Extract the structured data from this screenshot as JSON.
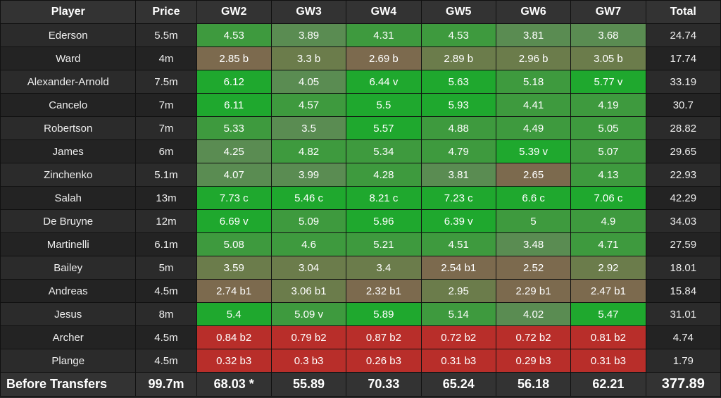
{
  "type": "table",
  "background_color": "#2a2a2a",
  "grid_color": "#111111",
  "text_color": "#ffffff",
  "header_bg": "#333333",
  "row_bg_a": "#2b2b2b",
  "row_bg_b": "#232323",
  "summary_bg": "#333333",
  "cell_colors": {
    "bright_green": "#1fa82e",
    "mid_green": "#3e9a3e",
    "dim_green": "#5a8c52",
    "olive": "#6b7c4b",
    "brown": "#7c6a4e",
    "red_brown": "#8a4d3a",
    "red": "#b82e2a"
  },
  "columns": [
    "Player",
    "Price",
    "GW2",
    "GW3",
    "GW4",
    "GW5",
    "GW6",
    "GW7",
    "Total"
  ],
  "gw_keys": [
    "GW2",
    "GW3",
    "GW4",
    "GW5",
    "GW6",
    "GW7"
  ],
  "rows": [
    {
      "player": "Ederson",
      "price": "5.5m",
      "total": "24.74",
      "cells": [
        {
          "v": "4.53",
          "c": "mid_green"
        },
        {
          "v": "3.89",
          "c": "dim_green"
        },
        {
          "v": "4.31",
          "c": "mid_green"
        },
        {
          "v": "4.53",
          "c": "mid_green"
        },
        {
          "v": "3.81",
          "c": "dim_green"
        },
        {
          "v": "3.68",
          "c": "dim_green"
        }
      ]
    },
    {
      "player": "Ward",
      "price": "4m",
      "total": "17.74",
      "cells": [
        {
          "v": "2.85 b",
          "c": "brown"
        },
        {
          "v": "3.3 b",
          "c": "olive"
        },
        {
          "v": "2.69 b",
          "c": "brown"
        },
        {
          "v": "2.89 b",
          "c": "olive"
        },
        {
          "v": "2.96 b",
          "c": "olive"
        },
        {
          "v": "3.05 b",
          "c": "olive"
        }
      ]
    },
    {
      "player": "Alexander-Arnold",
      "price": "7.5m",
      "total": "33.19",
      "cells": [
        {
          "v": "6.12",
          "c": "bright_green"
        },
        {
          "v": "4.05",
          "c": "dim_green"
        },
        {
          "v": "6.44 v",
          "c": "bright_green"
        },
        {
          "v": "5.63",
          "c": "bright_green"
        },
        {
          "v": "5.18",
          "c": "mid_green"
        },
        {
          "v": "5.77 v",
          "c": "bright_green"
        }
      ]
    },
    {
      "player": "Cancelo",
      "price": "7m",
      "total": "30.7",
      "cells": [
        {
          "v": "6.11",
          "c": "bright_green"
        },
        {
          "v": "4.57",
          "c": "mid_green"
        },
        {
          "v": "5.5",
          "c": "bright_green"
        },
        {
          "v": "5.93",
          "c": "bright_green"
        },
        {
          "v": "4.41",
          "c": "mid_green"
        },
        {
          "v": "4.19",
          "c": "mid_green"
        }
      ]
    },
    {
      "player": "Robertson",
      "price": "7m",
      "total": "28.82",
      "cells": [
        {
          "v": "5.33",
          "c": "mid_green"
        },
        {
          "v": "3.5",
          "c": "dim_green"
        },
        {
          "v": "5.57",
          "c": "bright_green"
        },
        {
          "v": "4.88",
          "c": "mid_green"
        },
        {
          "v": "4.49",
          "c": "mid_green"
        },
        {
          "v": "5.05",
          "c": "mid_green"
        }
      ]
    },
    {
      "player": "James",
      "price": "6m",
      "total": "29.65",
      "cells": [
        {
          "v": "4.25",
          "c": "dim_green"
        },
        {
          "v": "4.82",
          "c": "mid_green"
        },
        {
          "v": "5.34",
          "c": "mid_green"
        },
        {
          "v": "4.79",
          "c": "mid_green"
        },
        {
          "v": "5.39 v",
          "c": "bright_green"
        },
        {
          "v": "5.07",
          "c": "mid_green"
        }
      ]
    },
    {
      "player": "Zinchenko",
      "price": "5.1m",
      "total": "22.93",
      "cells": [
        {
          "v": "4.07",
          "c": "dim_green"
        },
        {
          "v": "3.99",
          "c": "dim_green"
        },
        {
          "v": "4.28",
          "c": "mid_green"
        },
        {
          "v": "3.81",
          "c": "dim_green"
        },
        {
          "v": "2.65",
          "c": "brown"
        },
        {
          "v": "4.13",
          "c": "mid_green"
        }
      ]
    },
    {
      "player": "Salah",
      "price": "13m",
      "total": "42.29",
      "cells": [
        {
          "v": "7.73 c",
          "c": "bright_green"
        },
        {
          "v": "5.46 c",
          "c": "bright_green"
        },
        {
          "v": "8.21 c",
          "c": "bright_green"
        },
        {
          "v": "7.23 c",
          "c": "bright_green"
        },
        {
          "v": "6.6 c",
          "c": "bright_green"
        },
        {
          "v": "7.06 c",
          "c": "bright_green"
        }
      ]
    },
    {
      "player": "De Bruyne",
      "price": "12m",
      "total": "34.03",
      "cells": [
        {
          "v": "6.69 v",
          "c": "bright_green"
        },
        {
          "v": "5.09",
          "c": "mid_green"
        },
        {
          "v": "5.96",
          "c": "bright_green"
        },
        {
          "v": "6.39 v",
          "c": "bright_green"
        },
        {
          "v": "5",
          "c": "mid_green"
        },
        {
          "v": "4.9",
          "c": "mid_green"
        }
      ]
    },
    {
      "player": "Martinelli",
      "price": "6.1m",
      "total": "27.59",
      "cells": [
        {
          "v": "5.08",
          "c": "mid_green"
        },
        {
          "v": "4.6",
          "c": "mid_green"
        },
        {
          "v": "5.21",
          "c": "mid_green"
        },
        {
          "v": "4.51",
          "c": "mid_green"
        },
        {
          "v": "3.48",
          "c": "dim_green"
        },
        {
          "v": "4.71",
          "c": "mid_green"
        }
      ]
    },
    {
      "player": "Bailey",
      "price": "5m",
      "total": "18.01",
      "cells": [
        {
          "v": "3.59",
          "c": "olive"
        },
        {
          "v": "3.04",
          "c": "olive"
        },
        {
          "v": "3.4",
          "c": "olive"
        },
        {
          "v": "2.54 b1",
          "c": "brown"
        },
        {
          "v": "2.52",
          "c": "brown"
        },
        {
          "v": "2.92",
          "c": "olive"
        }
      ]
    },
    {
      "player": "Andreas",
      "price": "4.5m",
      "total": "15.84",
      "cells": [
        {
          "v": "2.74 b1",
          "c": "brown"
        },
        {
          "v": "3.06 b1",
          "c": "olive"
        },
        {
          "v": "2.32 b1",
          "c": "brown"
        },
        {
          "v": "2.95",
          "c": "olive"
        },
        {
          "v": "2.29 b1",
          "c": "brown"
        },
        {
          "v": "2.47 b1",
          "c": "brown"
        }
      ]
    },
    {
      "player": "Jesus",
      "price": "8m",
      "total": "31.01",
      "cells": [
        {
          "v": "5.4",
          "c": "bright_green"
        },
        {
          "v": "5.09 v",
          "c": "mid_green"
        },
        {
          "v": "5.89",
          "c": "bright_green"
        },
        {
          "v": "5.14",
          "c": "mid_green"
        },
        {
          "v": "4.02",
          "c": "dim_green"
        },
        {
          "v": "5.47",
          "c": "bright_green"
        }
      ]
    },
    {
      "player": "Archer",
      "price": "4.5m",
      "total": "4.74",
      "cells": [
        {
          "v": "0.84 b2",
          "c": "red"
        },
        {
          "v": "0.79 b2",
          "c": "red"
        },
        {
          "v": "0.87 b2",
          "c": "red"
        },
        {
          "v": "0.72 b2",
          "c": "red"
        },
        {
          "v": "0.72 b2",
          "c": "red"
        },
        {
          "v": "0.81 b2",
          "c": "red"
        }
      ]
    },
    {
      "player": "Plange",
      "price": "4.5m",
      "total": "1.79",
      "cells": [
        {
          "v": "0.32 b3",
          "c": "red"
        },
        {
          "v": "0.3 b3",
          "c": "red"
        },
        {
          "v": "0.26 b3",
          "c": "red"
        },
        {
          "v": "0.31 b3",
          "c": "red"
        },
        {
          "v": "0.29 b3",
          "c": "red"
        },
        {
          "v": "0.31 b3",
          "c": "red"
        }
      ]
    }
  ],
  "summary": {
    "label": "Before Transfers",
    "price": "99.7m",
    "totals": [
      "68.03 *",
      "55.89",
      "70.33",
      "65.24",
      "56.18",
      "62.21"
    ],
    "grand_total": "377.89"
  }
}
